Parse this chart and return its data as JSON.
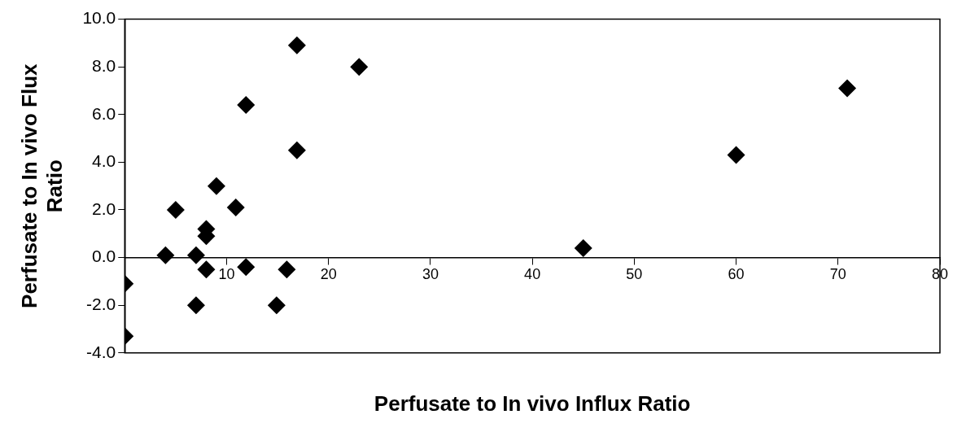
{
  "chart_data": {
    "type": "scatter",
    "xlabel": "Perfusate to In vivo Influx Ratio",
    "ylabel": "Perfusate to In vivo Flux Ratio",
    "x": [
      0,
      0,
      4,
      5,
      7,
      7,
      8,
      8,
      8,
      9,
      10.9,
      11.9,
      11.9,
      14.9,
      15.9,
      16.9,
      16.9,
      23,
      45,
      60,
      70.9
    ],
    "series": [
      {
        "color": "#000000",
        "values": [
          -1.1,
          -3.3,
          0.1,
          2.0,
          0.1,
          -2.0,
          1.2,
          0.9,
          -0.5,
          3.0,
          2.1,
          -0.4,
          6.4,
          -2.0,
          -0.5,
          8.9,
          4.5,
          8.0,
          0.4,
          4.3,
          7.1
        ]
      }
    ],
    "xlim": [
      0,
      80
    ],
    "xticks": [
      10,
      20,
      30,
      40,
      50,
      60,
      70,
      80
    ],
    "ylim": [
      -4,
      10
    ],
    "yticks": [
      {
        "value": -4,
        "label": "-4.0"
      },
      {
        "value": -2,
        "label": "-2.0"
      },
      {
        "value": 0,
        "label": "0.0"
      },
      {
        "value": 2,
        "label": "2.0"
      },
      {
        "value": 4,
        "label": "4.0"
      },
      {
        "value": 6,
        "label": "6.0"
      },
      {
        "value": 8,
        "label": "8.0"
      },
      {
        "value": 10,
        "label": "10.0"
      }
    ],
    "grid": false,
    "legend": false,
    "marker": "diamond"
  }
}
